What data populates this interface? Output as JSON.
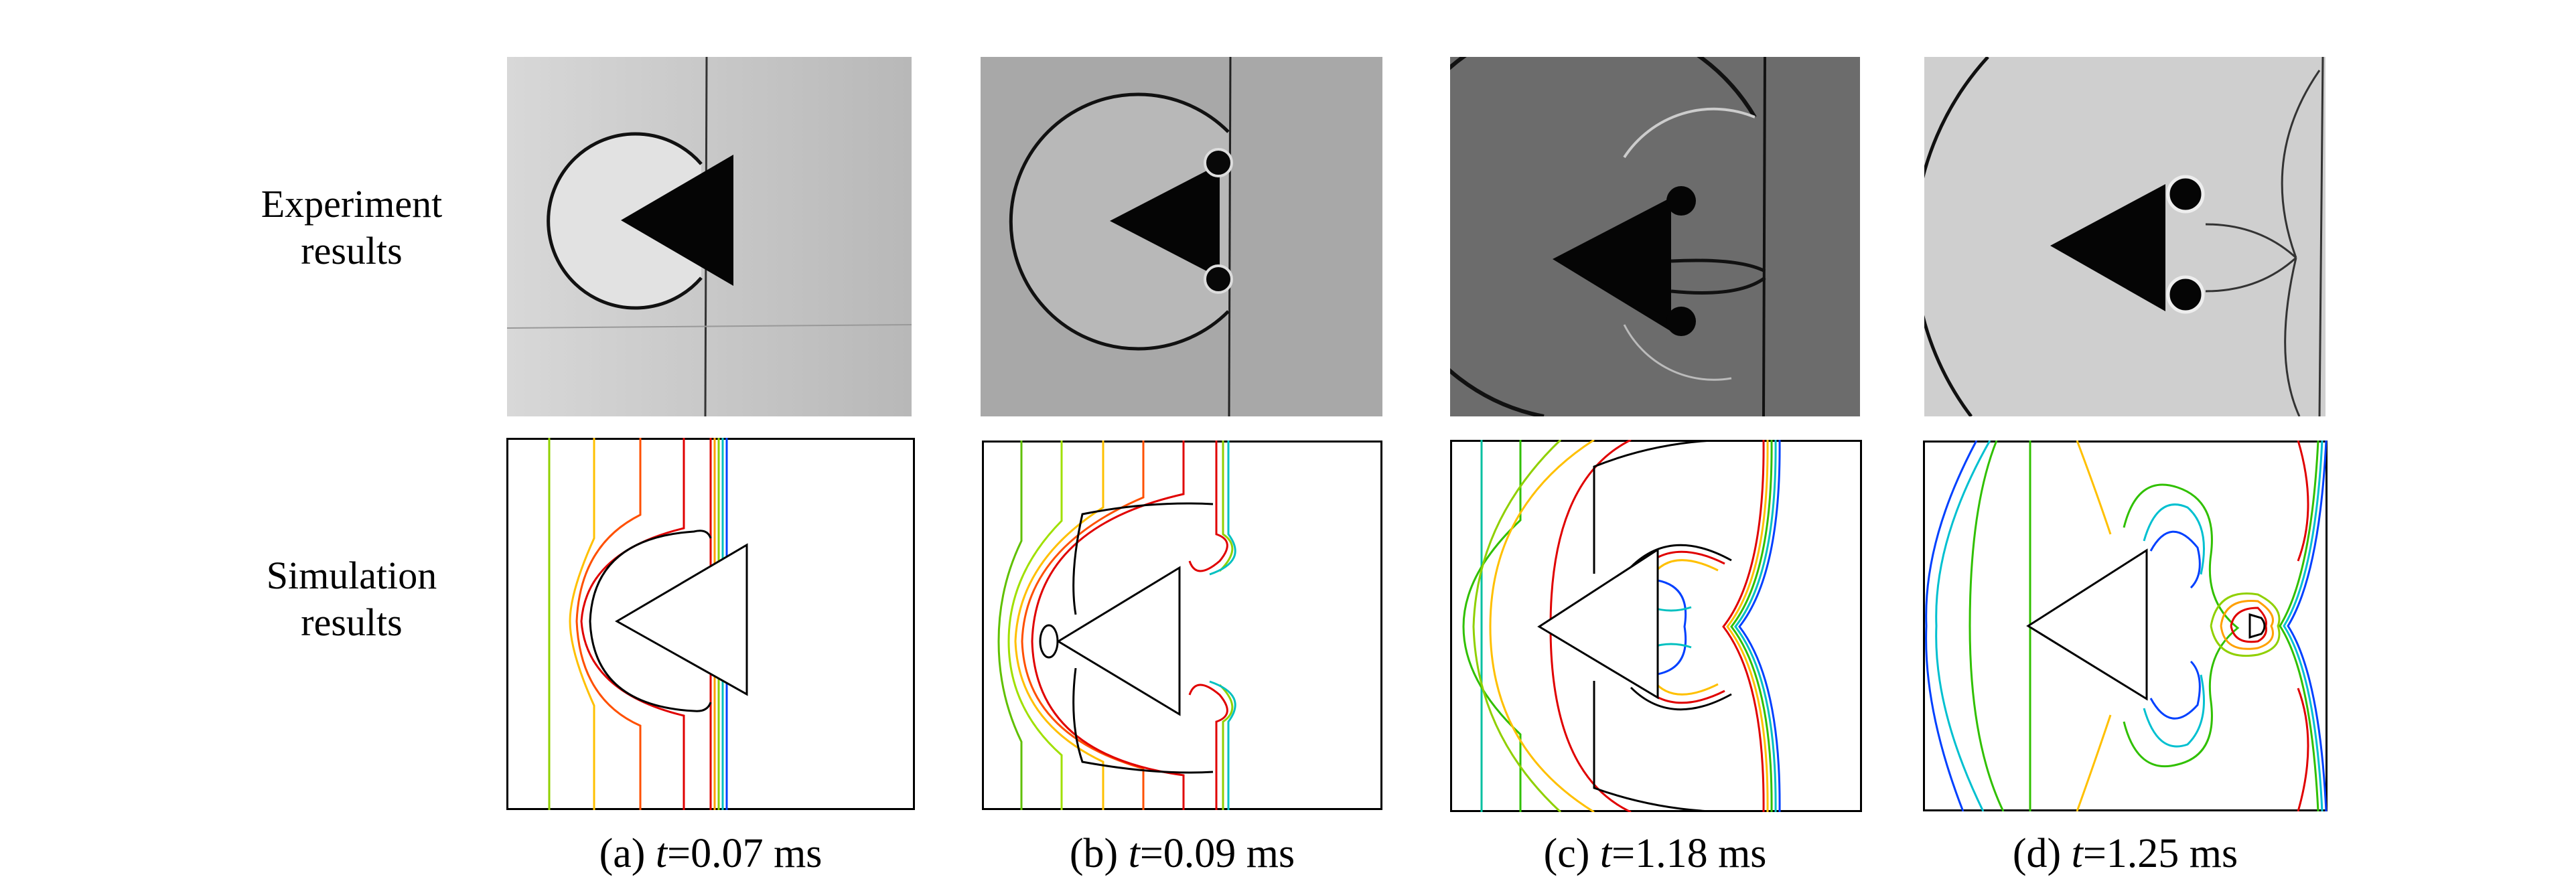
{
  "row_labels": {
    "experiment": [
      "Experiment",
      "results"
    ],
    "simulation": [
      "Simulation",
      "results"
    ]
  },
  "panels": [
    {
      "letter": "(a)",
      "var": "t",
      "value": "=0.07 ms"
    },
    {
      "letter": "(b)",
      "var": "t",
      "value": "=0.09 ms"
    },
    {
      "letter": "(c)",
      "var": "t",
      "value": "=1.18 ms"
    },
    {
      "letter": "(d)",
      "var": "t",
      "value": "=1.25 ms"
    }
  ],
  "contour_colors": [
    "#000000",
    "#e00000",
    "#ff7000",
    "#ffd000",
    "#a0e000",
    "#30c000",
    "#00d0d0",
    "#0060ff",
    "#0000c0"
  ]
}
